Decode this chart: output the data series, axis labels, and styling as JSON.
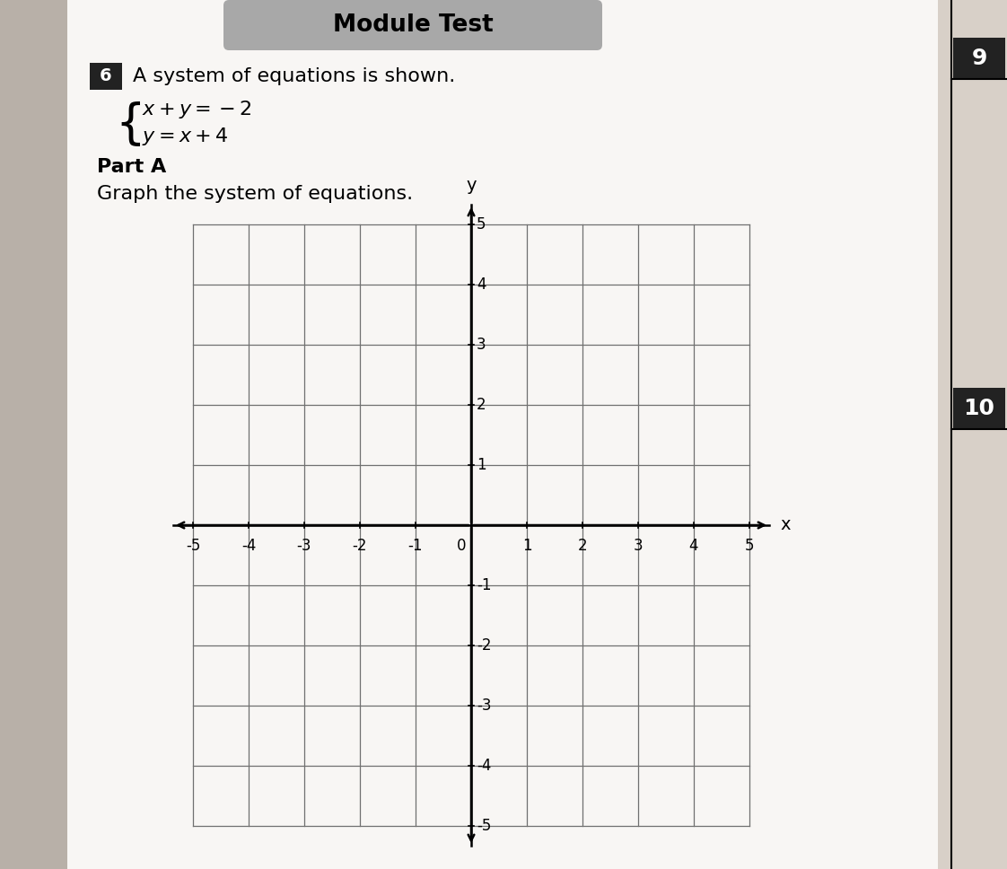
{
  "page_bg": "#d8d0c8",
  "paper_bg": "#f8f6f4",
  "title": "Module Test",
  "title_bg": "#a8a8a8",
  "question_num": "6",
  "question_text": "A system of equations is shown.",
  "eq1_text": "x + y = −2",
  "eq2_text": "y = x + 4",
  "part_label": "Part A",
  "instruction": "Graph the system of equations.",
  "side_num_9": "9",
  "side_num_10": "10",
  "grid_color": "#707070",
  "axis_color": "#111111",
  "xlabel": "x",
  "ylabel": "y",
  "left_edge_color": "#b8b0a8"
}
